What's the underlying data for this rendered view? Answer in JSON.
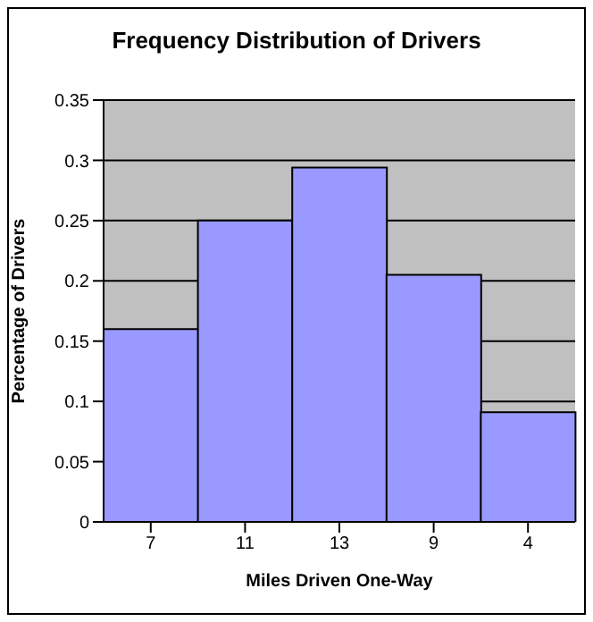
{
  "chart_data": {
    "type": "bar",
    "title": "Frequency Distribution of Drivers",
    "xlabel": "Miles Driven One-Way",
    "ylabel": "Percentage of Drivers",
    "categories": [
      "7",
      "11",
      "13",
      "9",
      "4"
    ],
    "values": [
      0.16,
      0.25,
      0.294,
      0.205,
      0.091
    ],
    "color": "#9999ff",
    "ylim": [
      0,
      0.35
    ],
    "yticks": [
      0,
      0.05,
      0.1,
      0.15,
      0.2,
      0.25,
      0.3,
      0.35
    ],
    "grid": "y",
    "legend": false
  }
}
